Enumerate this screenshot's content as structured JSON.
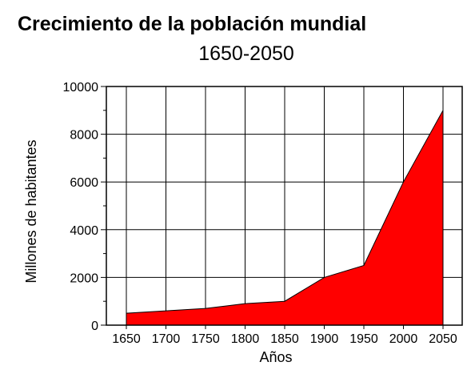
{
  "chart_data": {
    "type": "area",
    "title": "Crecimiento de la población mundial",
    "subtitle": "1650-2050",
    "xlabel": "Años",
    "ylabel": "Millones de habitantes",
    "xlim": [
      1650,
      2050
    ],
    "ylim": [
      0,
      10000
    ],
    "x_ticks": [
      "1650",
      "1700",
      "1750",
      "1800",
      "1850",
      "1900",
      "1950",
      "2000",
      "2050"
    ],
    "y_ticks": [
      "0",
      "2000",
      "4000",
      "6000",
      "8000",
      "10000"
    ],
    "grid": true,
    "legend": "none",
    "fill_color": "#ff0000",
    "series": [
      {
        "x": [
          1650,
          1700,
          1750,
          1800,
          1850,
          1900,
          1950,
          2000,
          2050
        ],
        "values": [
          500,
          600,
          700,
          900,
          1000,
          2000,
          2500,
          6000,
          9000
        ]
      }
    ]
  }
}
